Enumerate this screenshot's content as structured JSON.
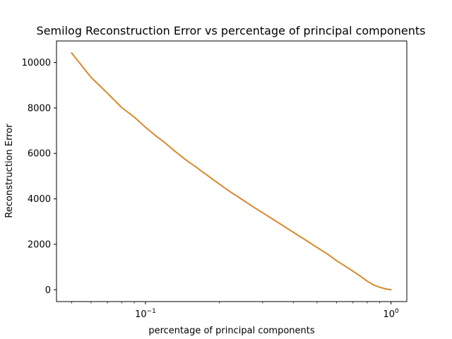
{
  "chart_data": {
    "type": "line",
    "title": "Semilog Reconstruction Error vs percentage of principal components",
    "xlabel": "percentage of principal components",
    "ylabel": "Reconstruction Error",
    "xscale": "log",
    "xlim": [
      0.0434,
      1.16
    ],
    "ylim": [
      -520,
      10950
    ],
    "grid": false,
    "x_ticks": [
      {
        "value": 0.1,
        "base": "10",
        "exp": "−1"
      },
      {
        "value": 1,
        "base": "10",
        "exp": "0"
      }
    ],
    "y_ticks": [
      0,
      2000,
      4000,
      6000,
      8000,
      10000
    ],
    "series": [
      {
        "color": "#d8892e",
        "x": [
          0.05,
          0.06,
          0.07,
          0.08,
          0.09,
          0.1,
          0.11,
          0.12,
          0.13,
          0.14,
          0.15,
          0.16,
          0.17,
          0.18,
          0.19,
          0.2,
          0.22,
          0.25,
          0.28,
          0.3,
          0.35,
          0.4,
          0.45,
          0.5,
          0.55,
          0.6,
          0.65,
          0.7,
          0.75,
          0.8,
          0.85,
          0.9,
          0.95,
          1.0
        ],
        "y": [
          10420,
          9350,
          8650,
          8020,
          7600,
          7150,
          6780,
          6470,
          6150,
          5870,
          5620,
          5420,
          5200,
          5010,
          4820,
          4650,
          4330,
          3940,
          3590,
          3390,
          2930,
          2530,
          2180,
          1860,
          1580,
          1280,
          1040,
          820,
          600,
          380,
          210,
          110,
          40,
          0
        ]
      }
    ]
  }
}
